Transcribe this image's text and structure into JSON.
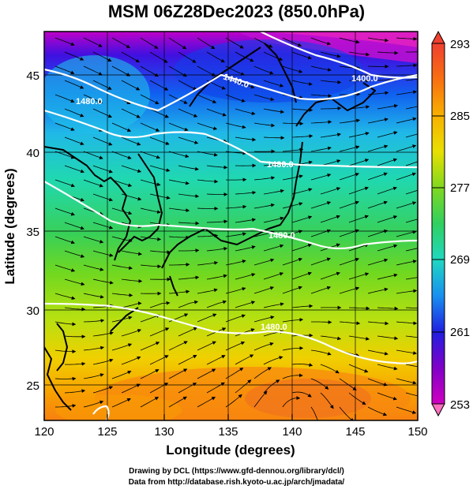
{
  "title": "MSM 06Z28Dec2023 (850.0hPa)",
  "xlabel": "Longitude (degrees)",
  "ylabel": "Latitude  (degrees)",
  "x_ticks": [
    "120",
    "125",
    "130",
    "135",
    "140",
    "145",
    "150"
  ],
  "y_ticks": [
    "25",
    "30",
    "35",
    "40",
    "45"
  ],
  "colorbar": {
    "min": 253,
    "max": 293,
    "tick_labels": [
      "293",
      "285",
      "277",
      "269",
      "261",
      "253"
    ],
    "colors": [
      "#f0f0ff",
      "#d000c0",
      "#8000c8",
      "#2020e0",
      "#1060f0",
      "#18b8e8",
      "#20e0b0",
      "#30d060",
      "#60d820",
      "#a8e010",
      "#f0e000",
      "#f8b000",
      "#f87010",
      "#f04030",
      "#ffe8e8"
    ]
  },
  "contours": [
    {
      "level": "1400.0"
    },
    {
      "level": "1440.0"
    },
    {
      "level": "1480.0"
    },
    {
      "level": "1480.0"
    },
    {
      "level": "1480.0"
    },
    {
      "level": "1480.0"
    }
  ],
  "credit": {
    "line1": "Drawing by DCL (https://www.gfd-dennou.org/library/dcl/)",
    "line2": "Data from http://database.rish.kyoto-u.ac.jp/arch/jmadata/"
  },
  "map_extent": {
    "lon": [
      120,
      150
    ],
    "lat": [
      22.5,
      47.5
    ]
  }
}
